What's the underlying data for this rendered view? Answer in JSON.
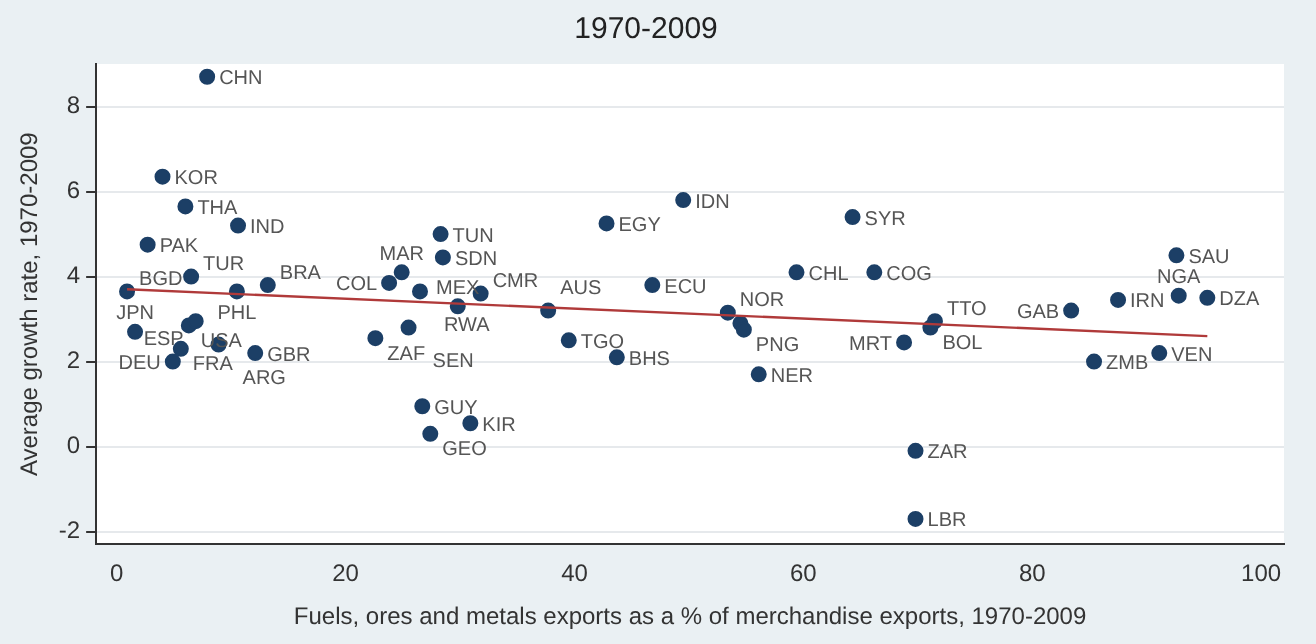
{
  "chart_data": {
    "type": "scatter",
    "title": "1970-2009",
    "xlabel": "Fuels, ores and metals exports as a % of merchandise exports, 1970-2009",
    "ylabel": "Average growth rate, 1970-2009",
    "xlim": [
      -1.8,
      102
    ],
    "ylim": [
      -2.3,
      9
    ],
    "xticks": [
      0,
      20,
      40,
      60,
      80,
      100
    ],
    "yticks": [
      -2,
      0,
      2,
      4,
      6,
      8
    ],
    "grid": "y",
    "legend": false,
    "series": [
      {
        "color": "#1c3f66",
        "marker": "circle",
        "x": [
          7.9,
          4.0,
          6.0,
          10.6,
          2.7,
          6.5,
          0.9,
          10.5,
          13.2,
          24.9,
          23.8,
          28.3,
          28.5,
          26.5,
          29.8,
          31.8,
          37.7,
          39.5,
          43.7,
          42.8,
          49.5,
          46.8,
          53.4,
          54.5,
          54.8,
          56.1,
          59.4,
          64.3,
          66.2,
          71.5,
          71.1,
          68.8,
          69.8,
          69.8,
          83.4,
          87.5,
          92.8,
          95.3,
          92.6,
          91.1,
          85.4,
          1.6,
          6.3,
          6.9,
          5.6,
          8.9,
          12.1,
          4.9,
          22.6,
          25.5,
          26.7,
          30.9,
          27.4
        ],
        "values": [
          8.7,
          6.35,
          5.65,
          5.2,
          4.75,
          4.0,
          3.65,
          3.65,
          3.8,
          4.1,
          3.85,
          5.0,
          4.45,
          3.65,
          3.3,
          3.6,
          3.2,
          2.5,
          2.1,
          5.25,
          5.8,
          3.8,
          3.15,
          2.9,
          2.75,
          1.7,
          4.1,
          5.4,
          4.1,
          2.95,
          2.8,
          2.45,
          -0.1,
          -1.7,
          3.2,
          3.45,
          3.55,
          3.5,
          4.5,
          2.2,
          2.0,
          2.7,
          2.85,
          2.95,
          2.3,
          2.4,
          2.2,
          2.0,
          2.55,
          2.8,
          0.95,
          0.55,
          0.3
        ]
      },
      {
        "type": "line",
        "color": "#b03a3a",
        "x": [
          0.9,
          95.3
        ],
        "values": [
          3.7,
          2.6
        ]
      }
    ],
    "annotations": [
      {
        "text": "CHN",
        "x": 7.9,
        "y": 8.7
      },
      {
        "text": "KOR",
        "x": 4.0,
        "y": 6.35
      },
      {
        "text": "THA",
        "x": 6.0,
        "y": 5.65
      },
      {
        "text": "IND",
        "x": 10.6,
        "y": 5.2
      },
      {
        "text": "PAK",
        "x": 2.7,
        "y": 4.75
      },
      {
        "text": "TUR",
        "x": 6.5,
        "y": 4.0
      },
      {
        "text": "BGD",
        "x": 0.9,
        "y": 3.65
      },
      {
        "text": "PHL",
        "x": 10.5,
        "y": 3.65
      },
      {
        "text": "BRA",
        "x": 13.2,
        "y": 3.8
      },
      {
        "text": "MAR",
        "x": 24.9,
        "y": 4.1
      },
      {
        "text": "COL",
        "x": 23.8,
        "y": 3.85
      },
      {
        "text": "TUN",
        "x": 28.3,
        "y": 5.0
      },
      {
        "text": "SDN",
        "x": 28.5,
        "y": 4.45
      },
      {
        "text": "RWA",
        "x": 26.5,
        "y": 3.65
      },
      {
        "text": "MEX",
        "x": 29.8,
        "y": 3.3
      },
      {
        "text": "CMR",
        "x": 31.8,
        "y": 3.6
      },
      {
        "text": "AUS",
        "x": 37.7,
        "y": 3.2
      },
      {
        "text": "TGO",
        "x": 39.5,
        "y": 2.5
      },
      {
        "text": "BHS",
        "x": 43.7,
        "y": 2.1
      },
      {
        "text": "EGY",
        "x": 42.8,
        "y": 5.25
      },
      {
        "text": "IDN",
        "x": 49.5,
        "y": 5.8
      },
      {
        "text": "ECU",
        "x": 46.8,
        "y": 3.8
      },
      {
        "text": "NOR",
        "x": 53.4,
        "y": 3.15
      },
      {
        "text": "PNG",
        "x": 54.8,
        "y": 2.75
      },
      {
        "text": "NER",
        "x": 56.1,
        "y": 1.7
      },
      {
        "text": "CHL",
        "x": 59.4,
        "y": 4.1
      },
      {
        "text": "SYR",
        "x": 64.3,
        "y": 5.4
      },
      {
        "text": "COG",
        "x": 66.2,
        "y": 4.1
      },
      {
        "text": "TTO",
        "x": 71.5,
        "y": 2.95
      },
      {
        "text": "BOL",
        "x": 71.1,
        "y": 2.8
      },
      {
        "text": "MRT",
        "x": 68.8,
        "y": 2.45
      },
      {
        "text": "ZAR",
        "x": 69.8,
        "y": -0.1
      },
      {
        "text": "LBR",
        "x": 69.8,
        "y": -1.7
      },
      {
        "text": "GAB",
        "x": 83.4,
        "y": 3.2
      },
      {
        "text": "IRN",
        "x": 87.5,
        "y": 3.45
      },
      {
        "text": "NGA",
        "x": 92.8,
        "y": 3.55
      },
      {
        "text": "DZA",
        "x": 95.3,
        "y": 3.5
      },
      {
        "text": "SAU",
        "x": 92.6,
        "y": 4.5
      },
      {
        "text": "VEN",
        "x": 91.1,
        "y": 2.2
      },
      {
        "text": "ZMB",
        "x": 85.4,
        "y": 2.0
      },
      {
        "text": "JPN",
        "x": 1.6,
        "y": 2.7
      },
      {
        "text": "USA",
        "x": 6.3,
        "y": 2.85
      },
      {
        "text": "ESP",
        "x": 6.9,
        "y": 2.95
      },
      {
        "text": "FRA",
        "x": 5.6,
        "y": 2.3
      },
      {
        "text": "ARG",
        "x": 8.9,
        "y": 2.4
      },
      {
        "text": "GBR",
        "x": 12.1,
        "y": 2.2
      },
      {
        "text": "DEU",
        "x": 4.9,
        "y": 2.0
      },
      {
        "text": "ZAF",
        "x": 22.6,
        "y": 2.55
      },
      {
        "text": "SEN",
        "x": 25.5,
        "y": 2.8
      },
      {
        "text": "GUY",
        "x": 26.7,
        "y": 0.95
      },
      {
        "text": "KIR",
        "x": 30.9,
        "y": 0.55
      },
      {
        "text": "GEO",
        "x": 27.4,
        "y": 0.3
      }
    ]
  }
}
